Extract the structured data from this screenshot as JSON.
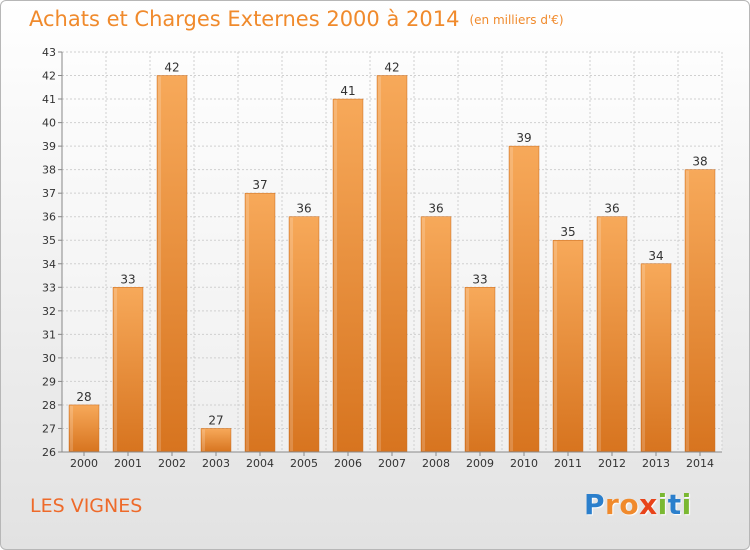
{
  "header": {
    "title": "Achats et Charges Externes 2000 à 2014",
    "unit": "(en milliers d'€)"
  },
  "footer": {
    "commune": "LES VIGNES",
    "logo": "Proxiti"
  },
  "colors": {
    "title": "#f08a2c",
    "bar_top": "#f7a95a",
    "bar_bottom": "#d7741f",
    "logo_letters": [
      "#2b7fcc",
      "#f08a2c",
      "#f08a2c",
      "#e8431a",
      "#7ab832",
      "#2b7fcc",
      "#7ab832"
    ]
  },
  "chart_data": {
    "type": "bar",
    "title": "Achats et Charges Externes 2000 à 2014",
    "subtitle": "(en milliers d'€)",
    "categories": [
      "2000",
      "2001",
      "2002",
      "2003",
      "2004",
      "2005",
      "2006",
      "2007",
      "2008",
      "2009",
      "2010",
      "2011",
      "2012",
      "2013",
      "2014"
    ],
    "values": [
      28,
      33,
      42,
      27,
      37,
      36,
      41,
      42,
      36,
      33,
      39,
      35,
      36,
      34,
      38
    ],
    "value_labels": [
      "28",
      "33",
      "42",
      "27",
      "37",
      "36",
      "41",
      "42",
      "36",
      "33",
      "39",
      "35",
      "36",
      "34",
      "38"
    ],
    "ylim": [
      26,
      43
    ],
    "yticks": [
      "26",
      "27",
      "28",
      "29",
      "30",
      "31",
      "32",
      "33",
      "34",
      "35",
      "36",
      "37",
      "38",
      "39",
      "40",
      "41",
      "42",
      "43"
    ],
    "grid": true,
    "legend": "none"
  }
}
